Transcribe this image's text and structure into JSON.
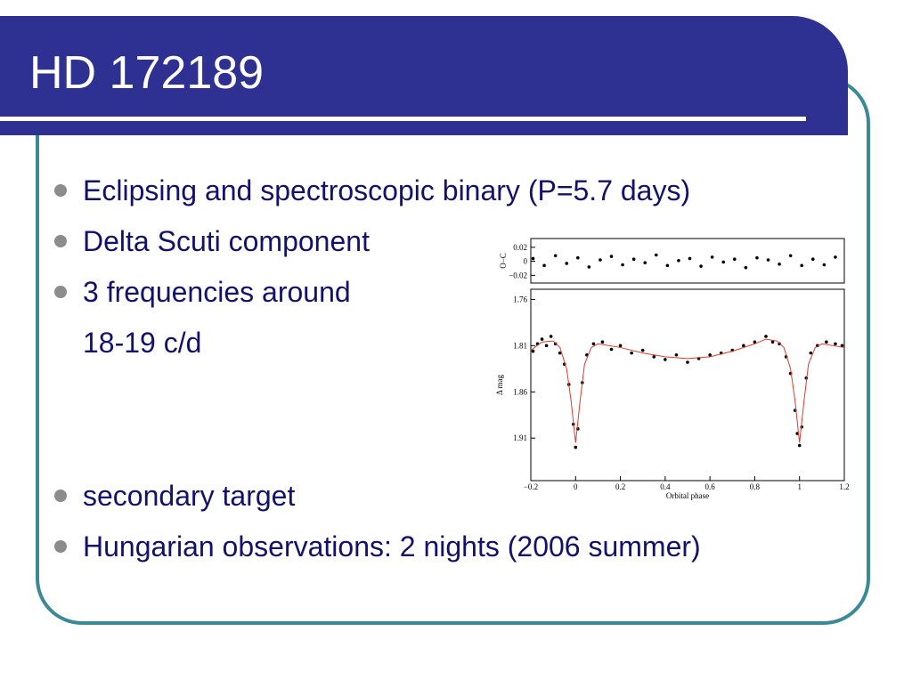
{
  "slide": {
    "title": "HD 172189",
    "bullets": [
      "Eclipsing and spectroscopic binary (P=5.7 days)",
      "Delta Scuti component",
      "3 frequencies around",
      "secondary target",
      "Hungarian observations: 2 nights (2006 summer)"
    ],
    "bullet_continuation": "18-19 c/d"
  },
  "chart_data": [
    {
      "type": "scatter",
      "ylabel": "O−C",
      "xlim": [
        -0.2,
        1.2
      ],
      "ylim": [
        -0.031,
        0.0325
      ],
      "yticks": [
        {
          "value": 0.02,
          "label": "0.02"
        },
        0,
        {
          "value": -0.02,
          "label": "−0.02"
        }
      ],
      "series": [
        {
          "color": "#000000",
          "x": [
            -0.19,
            -0.14,
            -0.09,
            -0.04,
            0.01,
            0.06,
            0.11,
            0.16,
            0.21,
            0.26,
            0.31,
            0.36,
            0.41,
            0.46,
            0.51,
            0.56,
            0.61,
            0.66,
            0.71,
            0.76,
            0.81,
            0.86,
            0.91,
            0.96,
            1.01,
            1.06,
            1.11,
            1.16
          ],
          "values": [
            0.004,
            -0.006,
            0.008,
            -0.003,
            0.005,
            -0.008,
            0.002,
            0.007,
            -0.005,
            0.003,
            -0.002,
            0.009,
            -0.006,
            0.001,
            0.004,
            -0.007,
            0.006,
            -0.001,
            0.003,
            -0.009,
            0.005,
            0.002,
            -0.004,
            0.008,
            -0.006,
            0.003,
            -0.005,
            0.006
          ]
        }
      ]
    },
    {
      "type": "scatter",
      "xlabel": "Orbital phase",
      "ylabel": "Δ mag",
      "xlim": [
        -0.2,
        1.2
      ],
      "ylim": [
        1.956,
        1.749
      ],
      "xticks": [
        {
          "value": -0.2,
          "label": "−0.2"
        },
        0,
        0.2,
        0.4,
        0.6,
        0.8,
        1,
        1.2
      ],
      "yticks": [
        1.76,
        1.81,
        1.86,
        1.91
      ],
      "series": [
        {
          "color": "#000000",
          "x": [
            -0.19,
            -0.17,
            -0.15,
            -0.13,
            -0.11,
            -0.09,
            -0.07,
            -0.05,
            -0.03,
            -0.01,
            0.0,
            0.01,
            0.03,
            0.05,
            0.08,
            0.12,
            0.16,
            0.2,
            0.25,
            0.3,
            0.35,
            0.4,
            0.45,
            0.5,
            0.55,
            0.6,
            0.65,
            0.7,
            0.75,
            0.8,
            0.85,
            0.88,
            0.91,
            0.94,
            0.96,
            0.98,
            0.99,
            1.0,
            1.01,
            1.03,
            1.05,
            1.08,
            1.12,
            1.16,
            1.19
          ],
          "values": [
            1.816,
            1.808,
            1.803,
            1.81,
            1.8,
            1.808,
            1.818,
            1.83,
            1.852,
            1.895,
            1.92,
            1.9,
            1.85,
            1.82,
            1.808,
            1.806,
            1.814,
            1.81,
            1.818,
            1.815,
            1.822,
            1.825,
            1.82,
            1.828,
            1.824,
            1.82,
            1.818,
            1.815,
            1.81,
            1.806,
            1.8,
            1.806,
            1.808,
            1.822,
            1.84,
            1.88,
            1.905,
            1.918,
            1.898,
            1.845,
            1.818,
            1.81,
            1.806,
            1.808,
            1.81
          ]
        },
        {
          "color": "#e03a2a",
          "line": true,
          "x": [
            -0.2,
            -0.15,
            -0.1,
            -0.07,
            -0.04,
            -0.02,
            0,
            0.02,
            0.04,
            0.07,
            0.1,
            0.2,
            0.3,
            0.4,
            0.5,
            0.6,
            0.7,
            0.8,
            0.85,
            0.9,
            0.93,
            0.96,
            0.98,
            1,
            1.02,
            1.04,
            1.07,
            1.1,
            1.2
          ],
          "values": [
            1.815,
            1.806,
            1.805,
            1.812,
            1.835,
            1.87,
            1.915,
            1.87,
            1.83,
            1.812,
            1.808,
            1.812,
            1.818,
            1.822,
            1.824,
            1.822,
            1.816,
            1.808,
            1.803,
            1.805,
            1.812,
            1.835,
            1.87,
            1.915,
            1.87,
            1.83,
            1.812,
            1.808,
            1.812
          ]
        }
      ]
    }
  ]
}
